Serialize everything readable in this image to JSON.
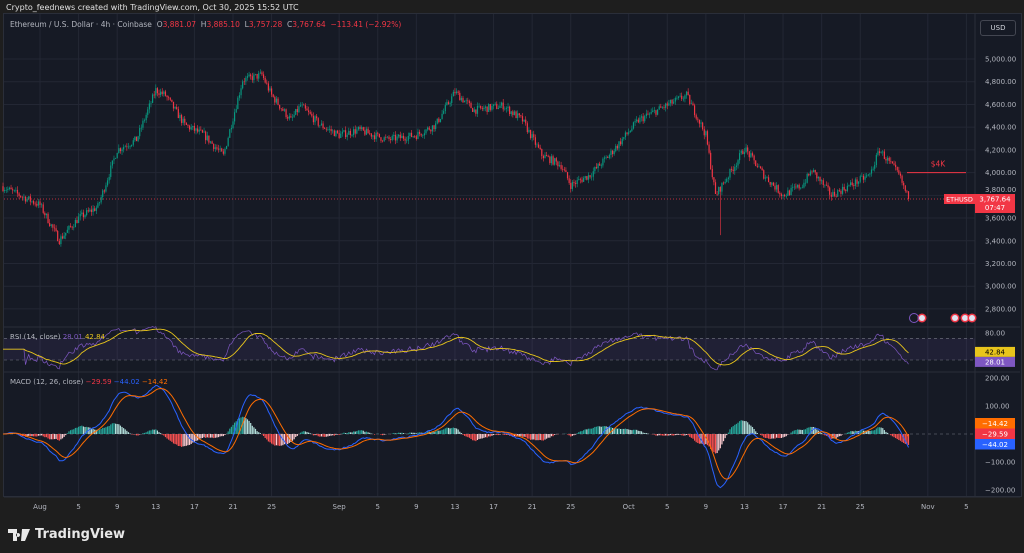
{
  "credit": "Crypto_feednews created with TradingView.com, Oct 30, 2025 15:52 UTC",
  "header": {
    "symbol": "Ethereum / U.S. Dollar · 4h · Coinbase",
    "o_label": "O",
    "o": "3,881.07",
    "h_label": "H",
    "h": "3,885.10",
    "l_label": "L",
    "l": "3,757.28",
    "c_label": "C",
    "c": "3,767.64",
    "change": "−113.41 (−2.92%)",
    "currency_button": "USD"
  },
  "colors": {
    "up": "#089981",
    "down": "#f23645",
    "rsi": "#7e57c2",
    "rsi_ma": "#e8c51c",
    "macd": "#2962ff",
    "signal": "#ff6d00",
    "background": "#161a25"
  },
  "footer": {
    "logo_text": "TradingView"
  },
  "chart_data": [
    {
      "type": "candlestick",
      "title": "Ethereum / U.S. Dollar · 4h · Coinbase",
      "ylim": [
        2700,
        5100
      ],
      "y_ticks": [
        "5,000.00",
        "4,800.00",
        "4,600.00",
        "4,400.00",
        "4,200.00",
        "4,000.00",
        "3,800.00",
        "3,600.00",
        "3,400.00",
        "3,200.00",
        "3,000.00",
        "2,800.00"
      ],
      "x_ticks": [
        "Aug",
        "5",
        "9",
        "13",
        "17",
        "21",
        "25",
        "Sep",
        "5",
        "9",
        "13",
        "17",
        "21",
        "25",
        "Oct",
        "5",
        "9",
        "13",
        "17",
        "21",
        "25",
        "Nov",
        "5"
      ],
      "approx_close_path": [
        [
          "2025-07-28",
          3880
        ],
        [
          "2025-08-01",
          3714
        ],
        [
          "2025-08-03",
          3406
        ],
        [
          "2025-08-05",
          3600
        ],
        [
          "2025-08-07",
          3700
        ],
        [
          "2025-08-09",
          4200
        ],
        [
          "2025-08-11",
          4290
        ],
        [
          "2025-08-13",
          4727
        ],
        [
          "2025-08-14",
          4680
        ],
        [
          "2025-08-16",
          4420
        ],
        [
          "2025-08-18",
          4330
        ],
        [
          "2025-08-20",
          4150
        ],
        [
          "2025-08-22",
          4815
        ],
        [
          "2025-08-24",
          4860
        ],
        [
          "2025-08-25",
          4680
        ],
        [
          "2025-08-27",
          4460
        ],
        [
          "2025-08-28",
          4590
        ],
        [
          "2025-08-30",
          4420
        ],
        [
          "2025-09-01",
          4330
        ],
        [
          "2025-09-03",
          4375
        ],
        [
          "2025-09-06",
          4290
        ],
        [
          "2025-09-09",
          4330
        ],
        [
          "2025-09-11",
          4420
        ],
        [
          "2025-09-13",
          4710
        ],
        [
          "2025-09-15",
          4550
        ],
        [
          "2025-09-18",
          4590
        ],
        [
          "2025-09-20",
          4460
        ],
        [
          "2025-09-22",
          4155
        ],
        [
          "2025-09-24",
          4065
        ],
        [
          "2025-09-25",
          3890
        ],
        [
          "2025-09-27",
          3980
        ],
        [
          "2025-09-29",
          4155
        ],
        [
          "2025-10-02",
          4460
        ],
        [
          "2025-10-04",
          4550
        ],
        [
          "2025-10-07",
          4680
        ],
        [
          "2025-10-08",
          4510
        ],
        [
          "2025-10-09",
          4330
        ],
        [
          "2025-10-10",
          3800
        ],
        [
          "2025-10-12",
          4065
        ],
        [
          "2025-10-13",
          4215
        ],
        [
          "2025-10-15",
          3980
        ],
        [
          "2025-10-17",
          3800
        ],
        [
          "2025-10-19",
          3890
        ],
        [
          "2025-10-20",
          4020
        ],
        [
          "2025-10-22",
          3800
        ],
        [
          "2025-10-24",
          3890
        ],
        [
          "2025-10-26",
          3980
        ],
        [
          "2025-10-27",
          4200
        ],
        [
          "2025-10-29",
          3980
        ],
        [
          "2025-10-30",
          3767.64
        ]
      ],
      "flash_low": {
        "date": "2025-10-10",
        "price": 3450
      },
      "last_price": {
        "symbol": "ETHUSD",
        "price": "3,767.64",
        "countdown": "07:47"
      },
      "annotation": {
        "text": "$4K",
        "price": 4000
      }
    },
    {
      "type": "line",
      "title": "RSI (14, close)",
      "values_text": {
        "rsi": "28.01",
        "rsi_ma": "42.84"
      },
      "axis_label": "80.00",
      "bands": [
        70,
        30
      ]
    },
    {
      "type": "bar+line",
      "title": "MACD (12, 26, close)",
      "values_text": {
        "histogram": "−29.59",
        "macd": "−44.02",
        "signal": "−14.42"
      },
      "y_ticks": [
        "200.00",
        "100.00",
        "−100.00",
        "−200.00"
      ],
      "ylim": [
        -220,
        220
      ]
    }
  ]
}
